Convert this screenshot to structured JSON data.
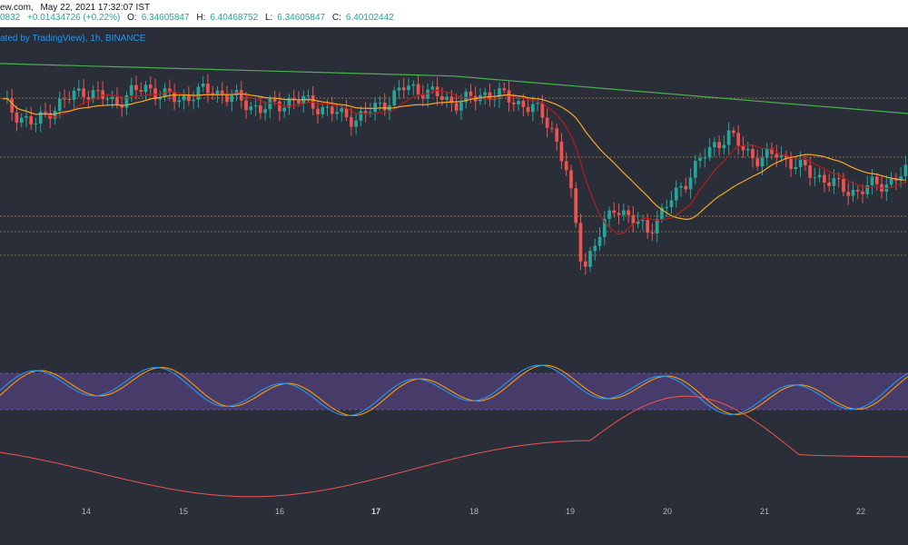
{
  "header": {
    "source": "ew.com,",
    "datetime": "May 22, 2021 17:32:07 IST",
    "last_fragment": "0832",
    "change": "+0.01434726 (+0.22%)",
    "open_label": "O:",
    "open": "6.34605847",
    "high_label": "H:",
    "high": "6.40468752",
    "low_label": "L:",
    "low": "6.34605847",
    "close_label": "C:",
    "close": "6.40102442",
    "published": "ated by TradingView), 1h, BINANCE"
  },
  "colors": {
    "background": "#2a2e39",
    "up": "#26a69a",
    "down": "#ef5350",
    "ma_fast": "#b71c1c",
    "ma_mid": "#f9a825",
    "ma_slow": "#4caf50",
    "stoch_k": "#2196f3",
    "stoch_d": "#ff9800",
    "stoch_band": "#7e57c2",
    "osc": "#ef5350"
  },
  "chart_data": {
    "type": "candlestick",
    "timeframe": "1h",
    "exchange": "BINANCE",
    "x_ticks": [
      "14",
      "15",
      "16",
      "17",
      "18",
      "19",
      "20",
      "21",
      "22"
    ],
    "x_tick_bold": "17",
    "price_series_close": [
      6.62,
      6.58,
      6.55,
      6.6,
      6.63,
      6.66,
      6.64,
      6.62,
      6.65,
      6.67,
      6.64,
      6.63,
      6.65,
      6.66,
      6.64,
      6.62,
      6.6,
      6.61,
      6.63,
      6.62,
      6.6,
      6.58,
      6.57,
      6.6,
      6.63,
      6.67,
      6.66,
      6.64,
      6.62,
      6.63,
      6.65,
      6.64,
      6.62,
      6.6,
      6.55,
      6.4,
      6.1,
      6.2,
      6.3,
      6.25,
      6.22,
      6.28,
      6.35,
      6.42,
      6.48,
      6.52,
      6.47,
      6.44,
      6.46,
      6.43,
      6.4,
      6.38,
      6.35,
      6.34,
      6.36,
      6.37,
      6.4
    ],
    "horizontal_levels": [
      "dotted-1",
      "dotted-2",
      "dotted-3",
      "dotted-4",
      "dotted-5"
    ],
    "indicators": [
      "Moving averages (3)",
      "Stochastic RSI",
      "Oscillator"
    ]
  }
}
